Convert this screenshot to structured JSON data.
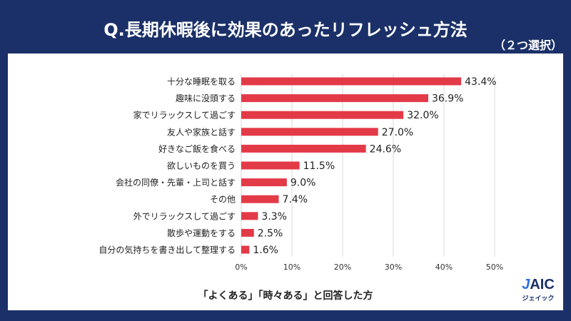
{
  "chart_data": {
    "type": "bar",
    "orientation": "horizontal",
    "title": "Q.長期休暇後に効果のあったリフレッシュ方法",
    "subtitle": "（２つ選択）",
    "categories": [
      "十分な睡眠を取る",
      "趣味に没頭する",
      "家でリラックスして過ごす",
      "友人や家族と話す",
      "好きなご飯を食べる",
      "欲しいものを買う",
      "会社の同僚・先輩・上司と話す",
      "その他",
      "外でリラックスして過ごす",
      "散歩や運動をする",
      "自分の気持ちを書き出して整理する"
    ],
    "values": [
      43.4,
      36.9,
      32.0,
      27.0,
      24.6,
      11.5,
      9.0,
      7.4,
      3.3,
      2.5,
      1.6
    ],
    "value_labels": [
      "43.4%",
      "36.9%",
      "32.0%",
      "27.0%",
      "24.6%",
      "11.5%",
      "9.0%",
      "7.4%",
      "3.3%",
      "2.5%",
      "1.6%"
    ],
    "xlim": [
      0,
      50
    ],
    "xticks": [
      "0%",
      "10%",
      "20%",
      "30%",
      "40%",
      "50%"
    ],
    "grid": true,
    "bar_color": "#e33a48",
    "note": "「よくある」「時々ある」と回答した方"
  },
  "logo": {
    "mark": "JAIC",
    "kana": "ジェイック"
  }
}
